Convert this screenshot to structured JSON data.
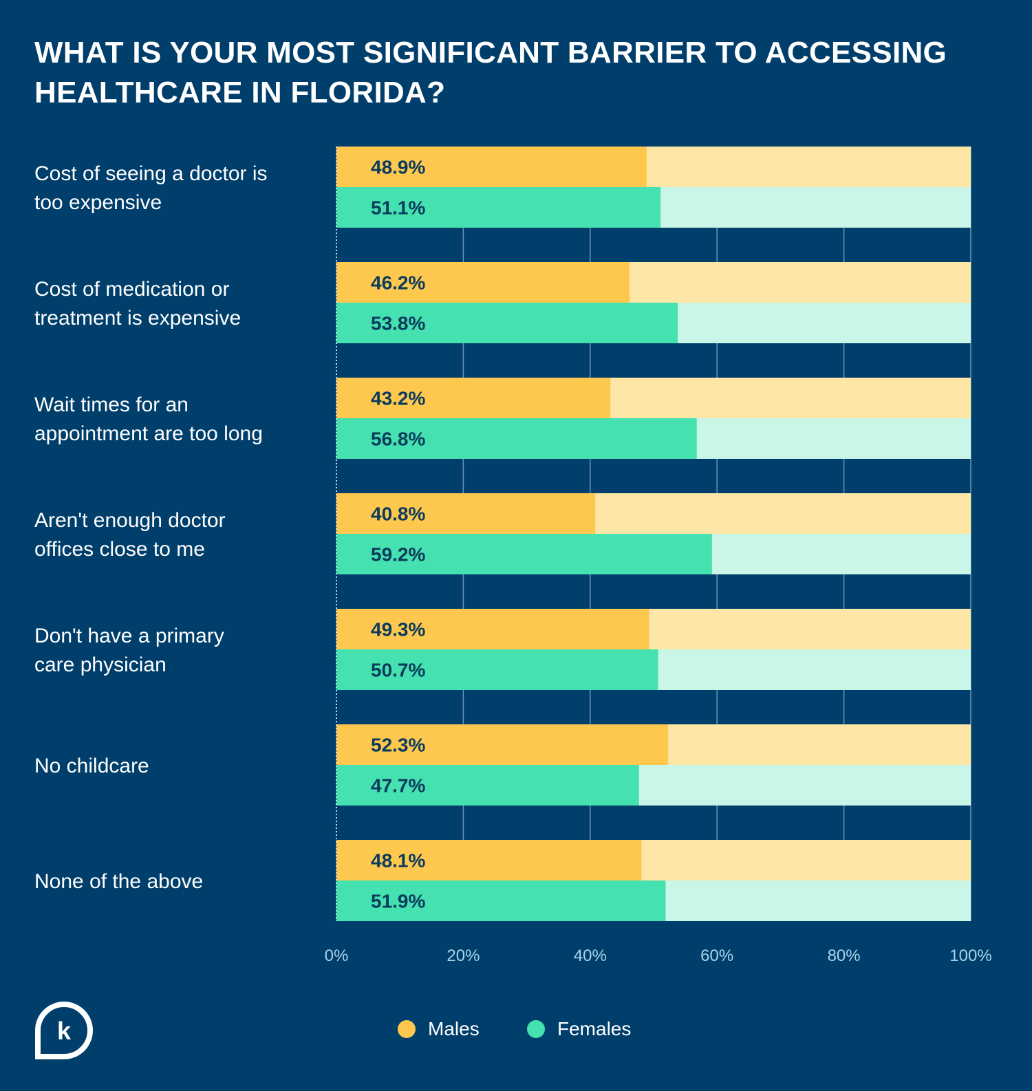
{
  "title_lines": [
    "What is your most significant barrier to accessing",
    "healthcare in Florida?"
  ],
  "colors": {
    "background": "#003e6b",
    "males": "#fec84f",
    "males_light": "#fee6a6",
    "females": "#45e1b0",
    "females_light": "#c9f6e6",
    "text_dark": "#0a3a5c",
    "axis_text": "#a9d4ea",
    "grid": "#6f95b4"
  },
  "legend": {
    "males_label": "Males",
    "females_label": "Females"
  },
  "logo_icon": "k-speech-bubble-logo",
  "chart_data": {
    "type": "bar",
    "orientation": "horizontal",
    "stacked_to_100": true,
    "categories": [
      [
        "Cost of seeing a doctor is",
        "too expensive"
      ],
      [
        "Cost of medication or",
        "treatment is expensive"
      ],
      [
        "Wait times for an",
        "appointment are too long"
      ],
      [
        "Aren't enough doctor",
        "offices close to me"
      ],
      [
        "Don't have a primary",
        "care physician"
      ],
      [
        "No childcare"
      ],
      [
        "None of the above"
      ]
    ],
    "series": [
      {
        "name": "Males",
        "values": [
          48.9,
          46.2,
          43.2,
          40.8,
          49.3,
          52.3,
          48.1
        ],
        "labels": [
          "48.9%",
          "46.2%",
          "43.2%",
          "40.8%",
          "49.3%",
          "52.3%",
          "48.1%"
        ]
      },
      {
        "name": "Females",
        "values": [
          51.1,
          53.8,
          56.8,
          59.2,
          50.7,
          47.7,
          51.9
        ],
        "labels": [
          "51.1%",
          "53.8%",
          "56.8%",
          "59.2%",
          "50.7%",
          "47.7%",
          "51.9%"
        ]
      }
    ],
    "xlim": [
      0,
      100
    ],
    "xticks": [
      0,
      20,
      40,
      60,
      80,
      100
    ],
    "xtick_labels": [
      "0%",
      "20%",
      "40%",
      "60%",
      "80%",
      "100%"
    ],
    "grid": true,
    "legend_position": "bottom-center"
  }
}
